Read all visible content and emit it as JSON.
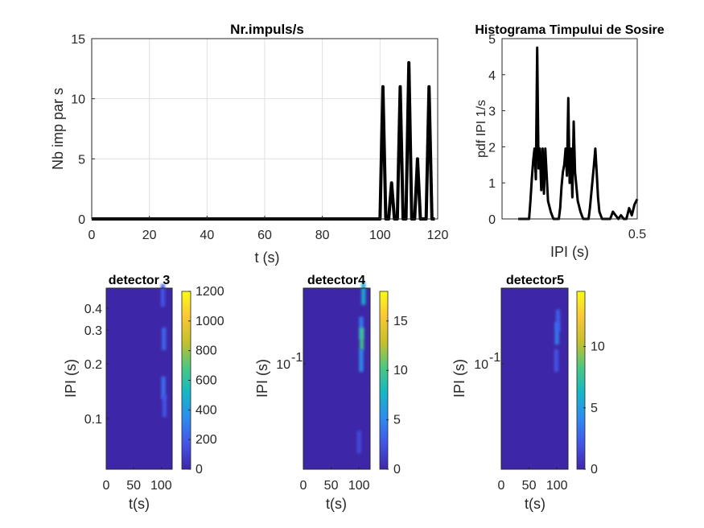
{
  "chart_data": [
    {
      "type": "line",
      "title": "Nr.impuls/s",
      "xlabel": "t (s)",
      "ylabel": "Nb imp par s",
      "xlim": [
        0,
        120
      ],
      "ylim": [
        0,
        15
      ],
      "xticks": [
        "0",
        "20",
        "40",
        "60",
        "80",
        "100",
        "120"
      ],
      "yticks": [
        "0",
        "5",
        "10",
        "15"
      ],
      "grid": true,
      "series_color": "#000000",
      "x": [
        0,
        100,
        101,
        102,
        103,
        104,
        105,
        106,
        107,
        108,
        109,
        110,
        111,
        112,
        113,
        114,
        115,
        116,
        117,
        118,
        119
      ],
      "y": [
        0,
        0,
        11,
        0,
        0,
        3,
        0,
        0,
        11,
        0,
        0,
        13,
        0,
        0,
        5,
        0,
        0,
        0,
        11,
        0,
        0
      ]
    },
    {
      "type": "line",
      "title": "Histograma Timpului de Sosire",
      "xlabel": "IPI (s)",
      "ylabel": "pdf IPI 1/s",
      "xlim": [
        0,
        0.5
      ],
      "ylim": [
        0,
        5
      ],
      "xticks": [
        "0.5"
      ],
      "yticks": [
        "0",
        "1",
        "2",
        "3",
        "4",
        "5"
      ],
      "grid": false,
      "series_color": "#000000",
      "x": [
        0.06,
        0.1,
        0.105,
        0.11,
        0.115,
        0.12,
        0.125,
        0.13,
        0.135,
        0.14,
        0.145,
        0.15,
        0.155,
        0.16,
        0.17,
        0.18,
        0.19,
        0.2,
        0.21,
        0.215,
        0.22,
        0.225,
        0.23,
        0.235,
        0.24,
        0.245,
        0.25,
        0.255,
        0.26,
        0.265,
        0.27,
        0.28,
        0.29,
        0.3,
        0.31,
        0.32,
        0.325,
        0.33,
        0.335,
        0.34,
        0.345,
        0.35,
        0.355,
        0.36,
        0.37,
        0.38,
        0.39,
        0.4,
        0.41,
        0.42,
        0.43,
        0.44,
        0.45,
        0.46,
        0.47,
        0.48,
        0.49,
        0.5
      ],
      "y": [
        0,
        0,
        0.5,
        1.1,
        1.6,
        1.95,
        1.1,
        4.75,
        1.4,
        1.95,
        0.8,
        1.95,
        0.7,
        1.95,
        0.5,
        0.2,
        0,
        0,
        0,
        0.3,
        0.9,
        1.3,
        1.5,
        1.95,
        1.2,
        3.35,
        1.0,
        1.95,
        0.6,
        2.7,
        1.3,
        0.5,
        0.2,
        0,
        0,
        0,
        0.3,
        0.7,
        1.1,
        1.5,
        1.95,
        1.3,
        0.6,
        0.2,
        0,
        0,
        0,
        0,
        0.2,
        0.1,
        0,
        0.1,
        0,
        0,
        0.3,
        0.1,
        0.4,
        0.55
      ]
    },
    {
      "type": "heatmap",
      "title": "detector 3",
      "xlabel": "t(s)",
      "ylabel": "IPI (s)",
      "xticks": [
        "0",
        "50",
        "100"
      ],
      "yticks": [
        "0.1",
        "0.2",
        "0.3",
        "0.4"
      ],
      "colorbar_ticks": [
        "0",
        "200",
        "400",
        "600",
        "800",
        "1000",
        "1200"
      ],
      "colorbar_range": [
        0,
        1200
      ],
      "colormap": [
        "#3e26a8",
        "#4353e6",
        "#2e8cf0",
        "#14b7c6",
        "#49c882",
        "#c3c02c",
        "#fbc835",
        "#f9fb15"
      ],
      "hotspots": [
        {
          "t": 103,
          "ipi_frac": 0.96,
          "level": 0.15
        },
        {
          "t": 105,
          "ipi_frac": 0.72,
          "level": 0.2
        },
        {
          "t": 104,
          "ipi_frac": 0.45,
          "level": 0.22
        },
        {
          "t": 106,
          "ipi_frac": 0.35,
          "level": 0.15
        }
      ]
    },
    {
      "type": "heatmap",
      "title": "detector4",
      "xlabel": "t(s)",
      "ylabel": "IPI (s)",
      "xticks": [
        "0",
        "50",
        "100"
      ],
      "yticks": [
        "10-1"
      ],
      "ytick_base": "10",
      "ytick_exp": "-1",
      "colorbar_ticks": [
        "0",
        "5",
        "10",
        "15"
      ],
      "colorbar_range": [
        0,
        18
      ],
      "colormap": [
        "#3e26a8",
        "#4353e6",
        "#2e8cf0",
        "#14b7c6",
        "#49c882",
        "#c3c02c",
        "#fbc835",
        "#f9fb15"
      ],
      "hotspots": [
        {
          "t": 108,
          "ipi_frac": 0.97,
          "level": 0.4
        },
        {
          "t": 104,
          "ipi_frac": 0.78,
          "level": 0.25
        },
        {
          "t": 105,
          "ipi_frac": 0.72,
          "level": 0.55
        },
        {
          "t": 104,
          "ipi_frac": 0.6,
          "level": 0.3
        },
        {
          "t": 100,
          "ipi_frac": 0.15,
          "level": 0.12
        }
      ]
    },
    {
      "type": "heatmap",
      "title": "detector5",
      "xlabel": "t(s)",
      "ylabel": "IPI (s)",
      "xticks": [
        "0",
        "50",
        "100"
      ],
      "yticks": [
        "10-1"
      ],
      "ytick_base": "10",
      "ytick_exp": "-1",
      "colorbar_ticks": [
        "0",
        "5",
        "10"
      ],
      "colorbar_range": [
        0,
        14.5
      ],
      "colormap": [
        "#3e26a8",
        "#4353e6",
        "#2e8cf0",
        "#14b7c6",
        "#49c882",
        "#c3c02c",
        "#fbc835",
        "#f9fb15"
      ],
      "hotspots": [
        {
          "t": 100,
          "ipi_frac": 0.75,
          "level": 0.25
        },
        {
          "t": 102,
          "ipi_frac": 0.82,
          "level": 0.18
        },
        {
          "t": 99,
          "ipi_frac": 0.6,
          "level": 0.15
        }
      ]
    }
  ]
}
